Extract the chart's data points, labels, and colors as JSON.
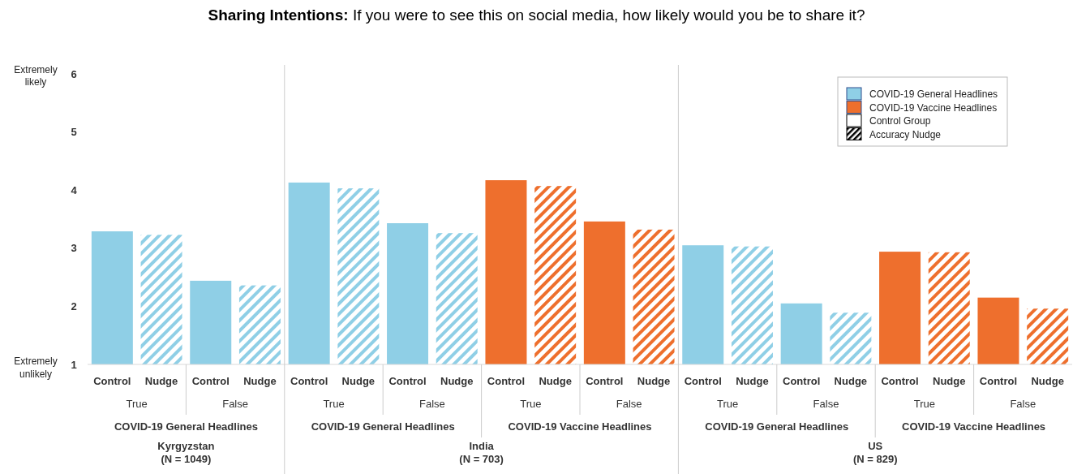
{
  "chart_data": {
    "type": "bar",
    "title": "Sharing Intentions:",
    "subtitle": "If you were to see this on social media, how likely would you be to share it?",
    "categories": [
      "Control",
      "Nudge",
      "Control",
      "Nudge",
      "Control",
      "Nudge",
      "Control",
      "Nudge",
      "Control",
      "Nudge",
      "Control",
      "Nudge",
      "Control",
      "Nudge",
      "Control",
      "Nudge",
      "Control",
      "Nudge",
      "Control",
      "Nudge"
    ],
    "series": [
      {
        "name": "COVID-19 General Headlines",
        "color": "#8fcfe6",
        "values": [
          3.29,
          3.23,
          2.44,
          2.36,
          4.13,
          4.03,
          3.43,
          3.26,
          null,
          null,
          null,
          null,
          3.05,
          3.03,
          2.05,
          1.89,
          null,
          null,
          null,
          null
        ]
      },
      {
        "name": "COVID-19 Vaccine Headlines",
        "color": "#ee6f2d",
        "values": [
          null,
          null,
          null,
          null,
          null,
          null,
          null,
          null,
          4.17,
          4.07,
          3.46,
          3.32,
          null,
          null,
          null,
          null,
          2.94,
          2.93,
          2.15,
          1.96
        ]
      }
    ],
    "ylim": [
      1,
      6
    ],
    "yticks": [
      1,
      2,
      3,
      4,
      5,
      6
    ],
    "legend": "top right",
    "annotations": [
      "Control Group",
      "Accuracy Nudge",
      "Extremely likely",
      "Extremely unlikely",
      "True",
      "False",
      "True",
      "False",
      "True",
      "False",
      "True",
      "False",
      "True",
      "False",
      "COVID-19 General Headlines",
      "COVID-19 General Headlines",
      "COVID-19 Vaccine Headlines",
      "COVID-19 General Headlines",
      "COVID-19 Vaccine Headlines",
      "Kyrgyzstan\n(N = 1049)",
      "India\n(N = 703)",
      "US\n(N = 829)"
    ]
  }
}
